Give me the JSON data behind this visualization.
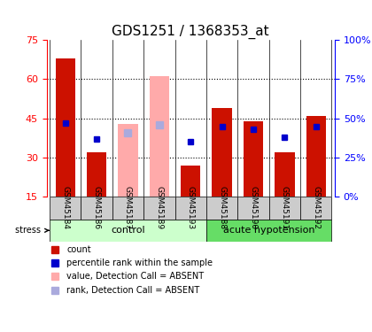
{
  "title": "GDS1251 / 1368353_at",
  "samples": [
    "GSM45184",
    "GSM45186",
    "GSM45187",
    "GSM45189",
    "GSM45193",
    "GSM45188",
    "GSM45190",
    "GSM45191",
    "GSM45192"
  ],
  "groups": [
    {
      "name": "control",
      "indices": [
        0,
        1,
        2,
        3,
        4
      ]
    },
    {
      "name": "acute hypotension",
      "indices": [
        5,
        6,
        7,
        8
      ]
    }
  ],
  "absent_flags": [
    false,
    false,
    true,
    true,
    false,
    false,
    false,
    false,
    false
  ],
  "red_values": [
    68,
    32,
    null,
    null,
    27,
    49,
    44,
    32,
    46
  ],
  "pink_values": [
    null,
    null,
    43,
    61,
    null,
    null,
    null,
    null,
    null
  ],
  "blue_values": [
    47,
    37,
    null,
    null,
    35,
    45,
    43,
    38,
    45
  ],
  "lavender_values": [
    null,
    null,
    41,
    46,
    null,
    null,
    null,
    null,
    null
  ],
  "ylim_left": [
    15,
    75
  ],
  "ylim_right": [
    0,
    100
  ],
  "yticks_left": [
    15,
    30,
    45,
    60,
    75
  ],
  "yticks_right": [
    0,
    25,
    50,
    75,
    100
  ],
  "ytick_labels_right": [
    "0%",
    "25%",
    "50%",
    "75%",
    "100%"
  ],
  "bar_width": 0.35,
  "colors": {
    "red": "#CC1100",
    "pink": "#FFAAAA",
    "blue": "#0000CC",
    "lavender": "#AAAADD",
    "grid": "#000000",
    "control_bg": "#CCFFCC",
    "hypotension_bg": "#88EE88",
    "label_bg": "#DDDDDD"
  },
  "legend_items": [
    {
      "label": "count",
      "color": "#CC1100",
      "marker": "s"
    },
    {
      "label": "percentile rank within the sample",
      "color": "#0000CC",
      "marker": "s"
    },
    {
      "label": "value, Detection Call = ABSENT",
      "color": "#FFAAAA",
      "marker": "s"
    },
    {
      "label": "rank, Detection Call = ABSENT",
      "color": "#AAAADD",
      "marker": "s"
    }
  ],
  "stress_label": "stress",
  "x_label_fontsize": 7,
  "title_fontsize": 11
}
